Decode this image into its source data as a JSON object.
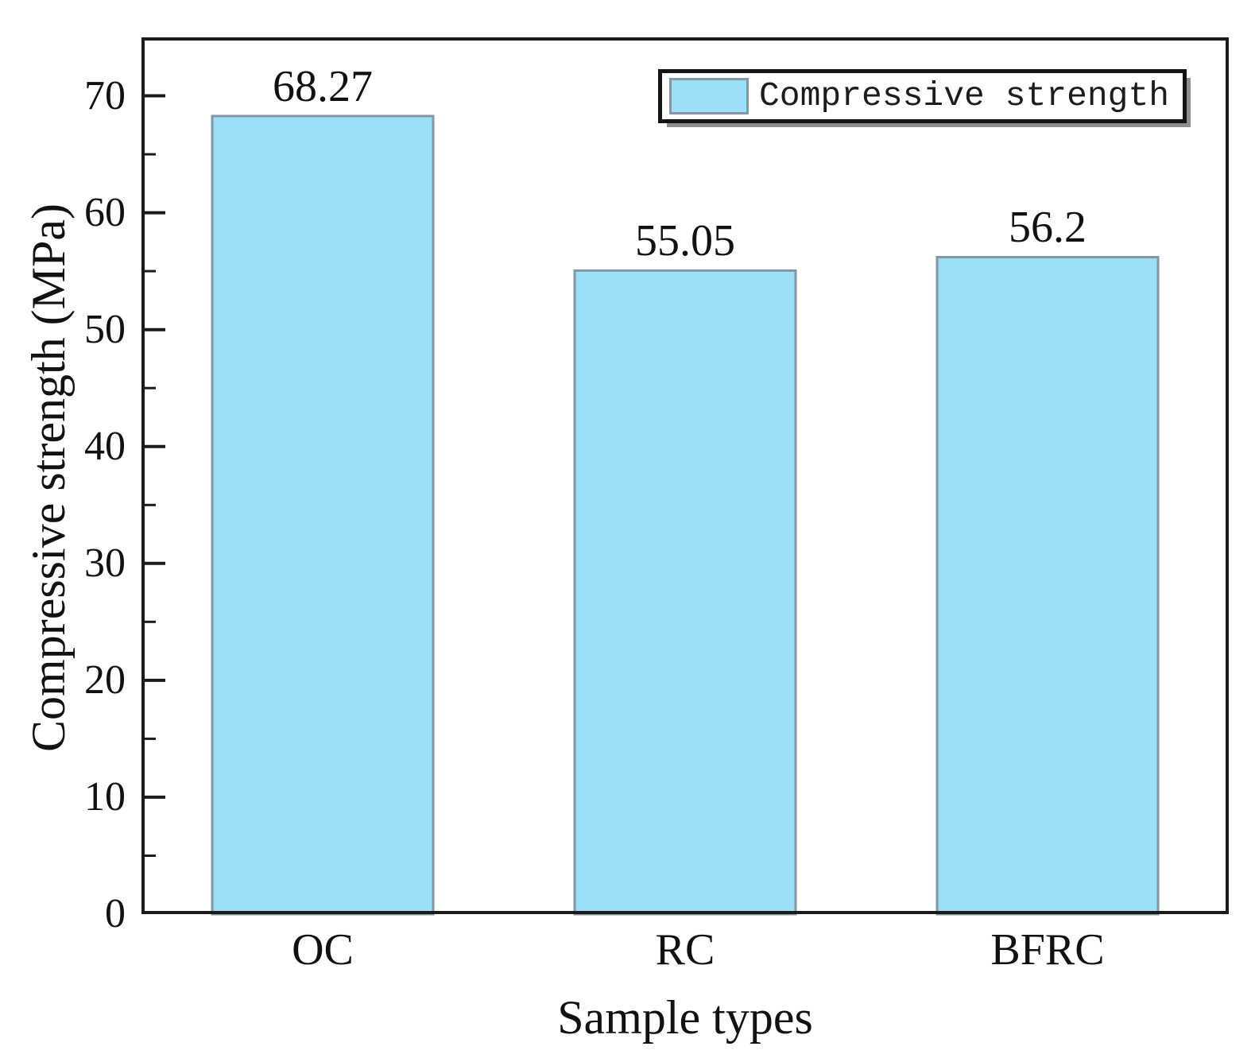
{
  "chart_data": {
    "type": "bar",
    "title": "",
    "categories": [
      "OC",
      "RC",
      "BFRC"
    ],
    "values": [
      68.27,
      55.05,
      56.2
    ],
    "value_labels": [
      "68.27",
      "55.05",
      "56.2"
    ],
    "series": [
      {
        "name": "Compressive strength",
        "values": [
          68.27,
          55.05,
          56.2
        ]
      }
    ],
    "xlabel": "Sample types",
    "ylabel": "Compressive strength (MPa)",
    "ylim": [
      0,
      75
    ],
    "y_major_tick_labels": [
      "0",
      "10",
      "20",
      "30",
      "40",
      "50",
      "60",
      "70"
    ],
    "y_major_tick_step": 10,
    "y_minor_tick_step": 5,
    "grid": false,
    "legend": {
      "label": "Compressive strength",
      "position": "top-right"
    },
    "colors": {
      "bar_fill": "#9BDFF9",
      "bar_border": "#8496A2",
      "axis": "#1B1B1B",
      "text": "#111111",
      "legend_shadow": "#8F8F8F"
    }
  }
}
